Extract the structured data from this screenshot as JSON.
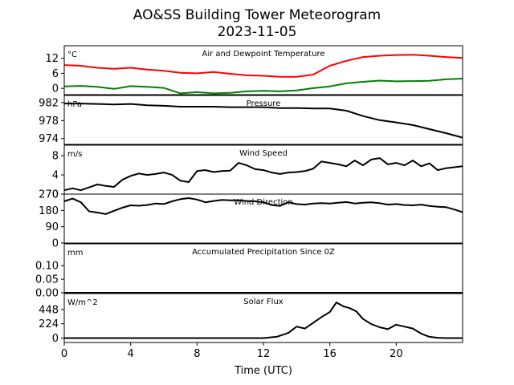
{
  "figure": {
    "title_line1": "AO&SS Building Tower Meteorogram",
    "title_line2": "2023-11-05",
    "xlabel": "Time (UTC)",
    "xticks": [
      "0",
      "4",
      "8",
      "12",
      "16",
      "20"
    ],
    "xlim": [
      0,
      24
    ]
  },
  "colors": {
    "air": "#ff0000",
    "dewpoint": "#008000",
    "line": "#000000"
  },
  "chart_data": [
    {
      "type": "line",
      "title": "Air and Dewpoint Temperature",
      "unit": "°C",
      "ylim": [
        -2.5,
        17
      ],
      "yticks": [
        "12",
        "6",
        "0"
      ],
      "ytick_values": [
        12,
        6,
        0
      ],
      "series": [
        {
          "name": "Air",
          "color": "#ff0000",
          "x": [
            0,
            1,
            2,
            3,
            4,
            5,
            6,
            7,
            8,
            9,
            10,
            11,
            12,
            13,
            14,
            15,
            16,
            17,
            18,
            19,
            20,
            21,
            22,
            23,
            24
          ],
          "y": [
            9.3,
            9.0,
            8.2,
            7.8,
            8.2,
            7.5,
            7.0,
            6.2,
            6.0,
            6.5,
            5.8,
            5.2,
            5.0,
            4.6,
            4.6,
            5.5,
            9.0,
            11.0,
            12.5,
            13.0,
            13.3,
            13.4,
            13.0,
            12.5,
            12.1
          ]
        },
        {
          "name": "Dewpoint",
          "color": "#008000",
          "x": [
            0,
            1,
            2,
            3,
            4,
            5,
            6,
            7,
            8,
            9,
            10,
            11,
            12,
            13,
            14,
            15,
            16,
            17,
            18,
            19,
            20,
            21,
            22,
            23,
            24
          ],
          "y": [
            0.8,
            1.0,
            0.6,
            -0.2,
            0.9,
            0.6,
            0.2,
            -2.0,
            -1.5,
            -2.0,
            -1.8,
            -1.2,
            -1.0,
            -1.2,
            -0.8,
            0.1,
            0.8,
            2.0,
            2.6,
            3.1,
            2.8,
            2.9,
            3.0,
            3.6,
            3.9
          ]
        }
      ]
    },
    {
      "type": "line",
      "title": "Pressure",
      "unit": "hPa",
      "ylim": [
        972.7,
        983.6
      ],
      "yticks": [
        "982",
        "978",
        "974"
      ],
      "ytick_values": [
        982,
        978,
        974
      ],
      "series": [
        {
          "color": "#000000",
          "x": [
            0,
            1,
            2,
            3,
            4,
            5,
            6,
            7,
            8,
            9,
            10,
            11,
            12,
            13,
            14,
            15,
            16,
            17,
            18,
            19,
            20,
            21,
            22,
            23,
            24
          ],
          "y": [
            981.8,
            981.8,
            981.7,
            981.6,
            981.7,
            981.4,
            981.3,
            981.1,
            981.1,
            981.1,
            981.0,
            981.0,
            981.0,
            980.8,
            980.8,
            980.7,
            980.7,
            980.2,
            979.0,
            978.1,
            977.6,
            977.0,
            976.1,
            975.2,
            974.2
          ]
        }
      ]
    },
    {
      "type": "line",
      "title": "Wind Speed",
      "unit": "m/s",
      "ylim": [
        0,
        10.2
      ],
      "yticks": [
        "8",
        "4",
        "0"
      ],
      "ytick_values": [
        8,
        4,
        0
      ],
      "series": [
        {
          "color": "#000000",
          "x": [
            0,
            0.5,
            1,
            1.5,
            2,
            2.5,
            3,
            3.5,
            4,
            4.5,
            5,
            5.5,
            6,
            6.5,
            7,
            7.5,
            8,
            8.5,
            9,
            9.5,
            10,
            10.5,
            11,
            11.5,
            12,
            12.5,
            13,
            13.5,
            14,
            14.5,
            15,
            15.5,
            16,
            16.5,
            17,
            17.5,
            18,
            18.5,
            19,
            19.5,
            20,
            20.5,
            21,
            21.5,
            22,
            22.5,
            23,
            23.5,
            24
          ],
          "y": [
            0.8,
            1.2,
            0.8,
            1.4,
            2.0,
            1.7,
            1.5,
            3.0,
            3.8,
            4.3,
            4.0,
            4.2,
            4.5,
            4.0,
            2.8,
            2.5,
            4.8,
            5.0,
            4.6,
            4.8,
            4.9,
            6.5,
            6.0,
            5.2,
            5.0,
            4.5,
            4.2,
            4.5,
            4.6,
            4.8,
            5.3,
            6.8,
            6.5,
            6.2,
            5.8,
            7.0,
            6.0,
            7.2,
            7.5,
            6.2,
            6.5,
            6.0,
            7.0,
            5.8,
            6.4,
            5.0,
            5.4,
            5.6,
            5.8
          ]
        }
      ]
    },
    {
      "type": "line",
      "title": "Wind Direction",
      "ylim": [
        0,
        270
      ],
      "yticks": [
        "270",
        "180",
        "90",
        "0"
      ],
      "ytick_values": [
        270,
        180,
        90,
        0
      ],
      "series": [
        {
          "color": "#000000",
          "x": [
            0,
            0.5,
            1,
            1.5,
            2,
            2.5,
            3,
            3.5,
            4,
            4.5,
            5,
            5.5,
            6,
            6.5,
            7,
            7.5,
            8,
            8.5,
            9,
            9.5,
            10,
            10.5,
            11,
            11.5,
            12,
            12.5,
            13,
            13.5,
            14,
            14.5,
            15,
            15.5,
            16,
            16.5,
            17,
            17.5,
            18,
            18.5,
            19,
            19.5,
            20,
            20.5,
            21,
            21.5,
            22,
            22.5,
            23,
            23.5,
            24
          ],
          "y": [
            230,
            245,
            225,
            175,
            168,
            160,
            178,
            195,
            208,
            206,
            210,
            218,
            215,
            230,
            242,
            248,
            240,
            225,
            232,
            238,
            236,
            236,
            232,
            230,
            225,
            210,
            205,
            225,
            215,
            212,
            218,
            220,
            218,
            222,
            226,
            218,
            222,
            225,
            220,
            212,
            215,
            210,
            208,
            212,
            205,
            200,
            198,
            185,
            170
          ]
        }
      ]
    },
    {
      "type": "line",
      "title": "Accumulated Precipitation Since 0Z",
      "unit": "mm",
      "ylim": [
        0,
        0.18
      ],
      "yticks": [
        "0.10",
        "0.05",
        "0.00"
      ],
      "ytick_values": [
        0.1,
        0.05,
        0.0
      ],
      "series": [
        {
          "color": "#000000",
          "x": [
            0,
            24
          ],
          "y": [
            0,
            0
          ]
        }
      ]
    },
    {
      "type": "line",
      "title": "Solar Flux",
      "unit": "W/m^2",
      "ylim": [
        -70,
        700
      ],
      "yticks": [
        "448",
        "224",
        "0"
      ],
      "ytick_values": [
        448,
        224,
        0
      ],
      "series": [
        {
          "color": "#000000",
          "x": [
            0,
            6,
            12,
            12.8,
            13.5,
            14,
            14.5,
            15,
            15.5,
            16,
            16.4,
            16.8,
            17.2,
            17.6,
            18,
            18.5,
            19,
            19.5,
            20,
            20.5,
            21,
            21.5,
            22,
            22.5,
            23,
            24
          ],
          "y": [
            0,
            0,
            0,
            20,
            80,
            180,
            150,
            240,
            330,
            410,
            560,
            500,
            470,
            420,
            300,
            220,
            170,
            140,
            210,
            180,
            150,
            70,
            20,
            5,
            0,
            0
          ]
        }
      ]
    }
  ]
}
